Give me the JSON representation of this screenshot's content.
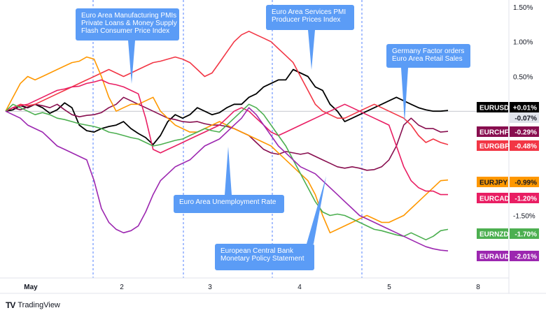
{
  "chart_data": {
    "type": "line",
    "x_ticks": [
      "May",
      "2",
      "3",
      "4",
      "5",
      "8"
    ],
    "y_ticks": [
      "1.50%",
      "1.00%",
      "0.50%",
      "-1.50%"
    ],
    "zero_line": true,
    "series": [
      {
        "name": "EURUSD",
        "value_label": "+0.01%",
        "color": "#000000",
        "label_bg": "#000000",
        "label_fg": "#ffffff",
        "values": [
          0,
          0.02,
          0.08,
          0.05,
          0.1,
          0.05,
          -0.03,
          0.02,
          0.12,
          0.05,
          -0.2,
          -0.28,
          -0.3,
          -0.25,
          -0.22,
          -0.2,
          -0.15,
          -0.25,
          -0.32,
          -0.38,
          -0.48,
          -0.35,
          -0.15,
          -0.05,
          -0.1,
          -0.05,
          0.05,
          0.0,
          -0.05,
          -0.02,
          0.05,
          0.1,
          0.1,
          0.2,
          0.25,
          0.35,
          0.4,
          0.45,
          0.45,
          0.6,
          0.55,
          0.5,
          0.35,
          0.3,
          0.1,
          0.0,
          -0.15,
          -0.1,
          -0.05,
          0.0,
          0.05,
          0.1,
          0.15,
          0.2,
          0.15,
          0.1,
          0.05,
          0.02,
          0.0,
          0.0,
          0.01
        ]
      },
      {
        "name": "",
        "value_label": "-0.07%",
        "color": "#b2b5be",
        "label_bg": "#e0e3eb",
        "label_fg": "#131722",
        "hidden_line": true,
        "values": []
      },
      {
        "name": "EURCHF",
        "value_label": "-0.29%",
        "color": "#880e4f",
        "label_bg": "#880e4f",
        "label_fg": "#ffffff",
        "values": [
          0,
          0.05,
          0.02,
          0.06,
          0.1,
          0.08,
          0.05,
          0.1,
          0.02,
          -0.05,
          -0.08,
          -0.06,
          -0.05,
          -0.02,
          0.05,
          0.1,
          0.2,
          0.15,
          0.1,
          0.05,
          0.0,
          -0.05,
          -0.1,
          -0.12,
          -0.15,
          -0.16,
          -0.15,
          -0.18,
          -0.2,
          -0.2,
          -0.22,
          -0.25,
          -0.3,
          -0.35,
          -0.45,
          -0.55,
          -0.6,
          -0.62,
          -0.58,
          -0.6,
          -0.62,
          -0.6,
          -0.65,
          -0.7,
          -0.75,
          -0.8,
          -0.82,
          -0.8,
          -0.82,
          -0.85,
          -0.84,
          -0.8,
          -0.7,
          -0.5,
          -0.2,
          -0.1,
          -0.2,
          -0.25,
          -0.25,
          -0.3,
          -0.29
        ]
      },
      {
        "name": "EURGBP",
        "value_label": "-0.48%",
        "color": "#f23645",
        "label_bg": "#f23645",
        "label_fg": "#ffffff",
        "values": [
          0,
          0.05,
          0.1,
          0.08,
          0.1,
          0.15,
          0.2,
          0.25,
          0.3,
          0.35,
          0.4,
          0.45,
          0.5,
          0.55,
          0.6,
          0.55,
          0.5,
          0.55,
          0.6,
          0.65,
          0.7,
          0.72,
          0.75,
          0.78,
          0.75,
          0.7,
          0.6,
          0.5,
          0.55,
          0.7,
          0.85,
          1.0,
          1.1,
          1.15,
          1.1,
          1.05,
          1.0,
          0.9,
          0.8,
          0.7,
          0.5,
          0.3,
          0.1,
          0.0,
          -0.05,
          -0.1,
          -0.1,
          -0.05,
          0.0,
          0.05,
          0.1,
          0.05,
          0.0,
          -0.05,
          -0.1,
          -0.2,
          -0.35,
          -0.45,
          -0.4,
          -0.45,
          -0.48
        ]
      },
      {
        "name": "EURJPY",
        "value_label": "-0.99%",
        "color": "#ff9800",
        "label_bg": "#ff9800",
        "label_fg": "#131722",
        "values": [
          0,
          0.2,
          0.4,
          0.5,
          0.45,
          0.5,
          0.55,
          0.6,
          0.65,
          0.7,
          0.72,
          0.78,
          0.75,
          0.5,
          0.2,
          0.0,
          0.05,
          0.1,
          0.1,
          0.15,
          0.2,
          0.0,
          -0.1,
          -0.2,
          -0.25,
          -0.3,
          -0.3,
          -0.25,
          -0.2,
          -0.15,
          -0.2,
          -0.25,
          -0.3,
          -0.35,
          -0.4,
          -0.45,
          -0.5,
          -0.6,
          -0.7,
          -0.8,
          -0.9,
          -1.0,
          -1.2,
          -1.5,
          -1.75,
          -1.7,
          -1.65,
          -1.6,
          -1.55,
          -1.5,
          -1.55,
          -1.6,
          -1.6,
          -1.55,
          -1.5,
          -1.4,
          -1.3,
          -1.2,
          -1.1,
          -1.0,
          -0.99
        ]
      },
      {
        "name": "EURCAD",
        "value_label": "-1.20%",
        "color": "#e91e63",
        "label_bg": "#e91e63",
        "label_fg": "#ffffff",
        "values": [
          0,
          0.05,
          0.08,
          0.1,
          0.15,
          0.2,
          0.25,
          0.3,
          0.32,
          0.35,
          0.36,
          0.4,
          0.42,
          0.45,
          0.4,
          0.38,
          0.35,
          0.3,
          0.25,
          -0.1,
          -0.55,
          -0.6,
          -0.55,
          -0.5,
          -0.45,
          -0.4,
          -0.35,
          -0.3,
          -0.25,
          -0.2,
          -0.1,
          0.0,
          0.05,
          0.0,
          -0.1,
          -0.2,
          -0.3,
          -0.35,
          -0.3,
          -0.25,
          -0.2,
          -0.15,
          -0.1,
          -0.05,
          0.0,
          0.05,
          0.1,
          0.05,
          0.0,
          -0.05,
          -0.1,
          -0.15,
          -0.2,
          -0.5,
          -0.8,
          -1.0,
          -1.1,
          -1.15,
          -1.15,
          -1.2,
          -1.2
        ]
      },
      {
        "name": "EURNZD",
        "value_label": "-1.70%",
        "color": "#4caf50",
        "label_bg": "#4caf50",
        "label_fg": "#ffffff",
        "values": [
          0,
          0.1,
          0.05,
          0.0,
          -0.05,
          -0.02,
          -0.05,
          -0.1,
          -0.12,
          -0.15,
          -0.18,
          -0.2,
          -0.22,
          -0.25,
          -0.3,
          -0.32,
          -0.35,
          -0.38,
          -0.4,
          -0.45,
          -0.5,
          -0.48,
          -0.45,
          -0.42,
          -0.4,
          -0.35,
          -0.3,
          -0.25,
          -0.28,
          -0.3,
          -0.2,
          -0.1,
          0.0,
          0.1,
          0.05,
          -0.05,
          -0.2,
          -0.35,
          -0.5,
          -0.7,
          -0.9,
          -1.1,
          -1.3,
          -1.45,
          -1.5,
          -1.48,
          -1.5,
          -1.55,
          -1.6,
          -1.65,
          -1.7,
          -1.72,
          -1.75,
          -1.78,
          -1.8,
          -1.75,
          -1.8,
          -1.85,
          -1.8,
          -1.72,
          -1.7
        ]
      },
      {
        "name": "EURAUD",
        "value_label": "-2.01%",
        "color": "#9c27b0",
        "label_bg": "#9c27b0",
        "label_fg": "#ffffff",
        "values": [
          0,
          -0.05,
          -0.1,
          -0.2,
          -0.25,
          -0.3,
          -0.4,
          -0.5,
          -0.55,
          -0.6,
          -0.65,
          -0.7,
          -1.0,
          -1.4,
          -1.6,
          -1.7,
          -1.75,
          -1.72,
          -1.65,
          -1.45,
          -1.2,
          -1.0,
          -0.9,
          -0.8,
          -0.75,
          -0.7,
          -0.6,
          -0.5,
          -0.45,
          -0.4,
          -0.3,
          -0.2,
          -0.1,
          0.05,
          -0.05,
          -0.2,
          -0.35,
          -0.5,
          -0.6,
          -0.7,
          -0.8,
          -0.85,
          -0.9,
          -1.0,
          -1.1,
          -1.2,
          -1.3,
          -1.4,
          -1.5,
          -1.55,
          -1.6,
          -1.65,
          -1.7,
          -1.75,
          -1.8,
          -1.85,
          -1.9,
          -1.95,
          -1.98,
          -2.0,
          -2.01
        ]
      }
    ],
    "annotations": [
      {
        "lines": [
          "Euro Area Manufacturing PMIs",
          "Private Loans & Money Supply",
          "Flash Consumer Price Index"
        ]
      },
      {
        "lines": [
          "Euro Area Services PMI",
          "Producer Prices Index"
        ]
      },
      {
        "lines": [
          "Germany Factor orders",
          "Euro Area Retail Sales"
        ]
      },
      {
        "lines": [
          "Euro Area Unemployment Rate"
        ]
      },
      {
        "lines": [
          "European Central Bank",
          "Monetary Policy Statement"
        ]
      }
    ]
  },
  "brand": {
    "name": "TradingView"
  }
}
